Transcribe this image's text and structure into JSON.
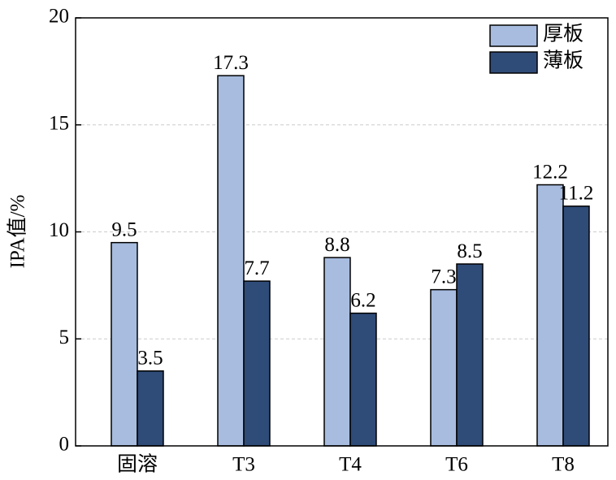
{
  "chart_data": {
    "type": "bar",
    "y_label": "IPA值/%",
    "categories": [
      "固溶",
      "T3",
      "T4",
      "T6",
      "T8"
    ],
    "series": [
      {
        "name": "厚板",
        "color": "#a7bcdf",
        "values": [
          9.5,
          17.3,
          8.8,
          7.3,
          12.2
        ]
      },
      {
        "name": "薄板",
        "color": "#2f4b78",
        "values": [
          3.5,
          7.7,
          6.2,
          8.5,
          11.2
        ]
      }
    ],
    "ylim": [
      0,
      20
    ],
    "yticks": [
      0,
      5,
      10,
      15,
      20
    ],
    "grid": true,
    "legend": "upper right"
  }
}
